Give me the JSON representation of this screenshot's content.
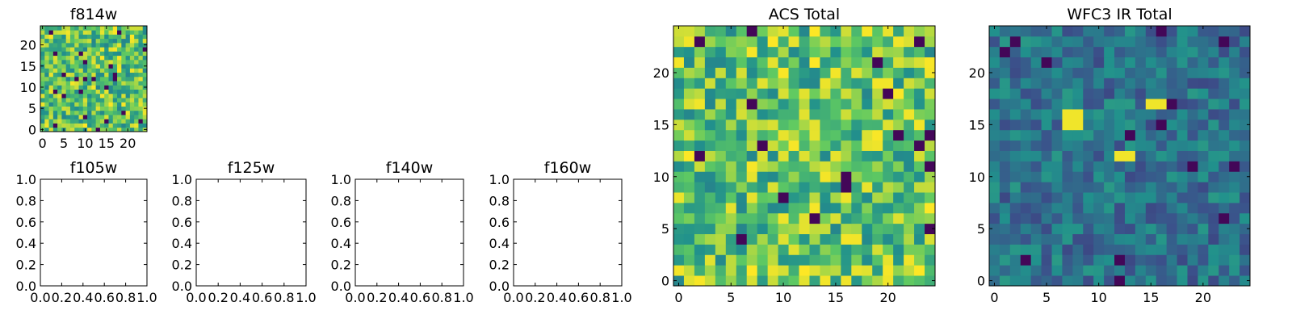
{
  "chart_data": [
    {
      "type": "heatmap",
      "title": "f814w",
      "xlim": [
        -0.5,
        24.5
      ],
      "ylim": [
        -0.5,
        24.5
      ],
      "xticks": [
        0,
        5,
        10,
        15,
        20
      ],
      "yticks": [
        0,
        5,
        10,
        15,
        20
      ],
      "grid_size": 25,
      "colormap": [
        "#440154",
        "#3b528b",
        "#21918c",
        "#5ec962",
        "#fde725"
      ],
      "values_note": "pixel noise",
      "seed": 814
    },
    {
      "type": "scatter",
      "title": "f105w",
      "xlim": [
        0,
        1
      ],
      "ylim": [
        0,
        1
      ],
      "xticks": [
        "0.0",
        "0.2",
        "0.4",
        "0.6",
        "0.8",
        "1.0"
      ],
      "yticks": [
        "0.0",
        "0.2",
        "0.4",
        "0.6",
        "0.8",
        "1.0"
      ]
    },
    {
      "type": "scatter",
      "title": "f125w",
      "xlim": [
        0,
        1
      ],
      "ylim": [
        0,
        1
      ],
      "xticks": [
        "0.0",
        "0.2",
        "0.4",
        "0.6",
        "0.8",
        "1.0"
      ],
      "yticks": [
        "0.0",
        "0.2",
        "0.4",
        "0.6",
        "0.8",
        "1.0"
      ]
    },
    {
      "type": "scatter",
      "title": "f140w",
      "xlim": [
        0,
        1
      ],
      "ylim": [
        0,
        1
      ],
      "xticks": [
        "0.0",
        "0.2",
        "0.4",
        "0.6",
        "0.8",
        "1.0"
      ],
      "yticks": [
        "0.0",
        "0.2",
        "0.4",
        "0.6",
        "0.8",
        "1.0"
      ]
    },
    {
      "type": "scatter",
      "title": "f160w",
      "xlim": [
        0,
        1
      ],
      "ylim": [
        0,
        1
      ],
      "xticks": [
        "0.0",
        "0.2",
        "0.4",
        "0.6",
        "0.8",
        "1.0"
      ],
      "yticks": [
        "0.0",
        "0.2",
        "0.4",
        "0.6",
        "0.8",
        "1.0"
      ]
    },
    {
      "type": "heatmap",
      "title": "ACS Total",
      "xlim": [
        -0.5,
        24.5
      ],
      "ylim": [
        -0.5,
        24.5
      ],
      "xticks": [
        0,
        5,
        10,
        15,
        20
      ],
      "yticks": [
        0,
        5,
        10,
        15,
        20
      ],
      "grid_size": 25,
      "colormap": [
        "#440154",
        "#3b528b",
        "#21918c",
        "#5ec962",
        "#fde725"
      ],
      "seed": 2001
    },
    {
      "type": "heatmap",
      "title": "WFC3 IR Total",
      "xlim": [
        -0.5,
        24.5
      ],
      "ylim": [
        -0.5,
        24.5
      ],
      "xticks": [
        0,
        5,
        10,
        15,
        20
      ],
      "yticks": [
        0,
        5,
        10,
        15,
        20
      ],
      "grid_size": 25,
      "colormap": [
        "#440154",
        "#3b528b",
        "#21918c",
        "#5ec962",
        "#fde725"
      ],
      "seed": 3003,
      "bright_blobs": [
        [
          7,
          15.5
        ],
        [
          8,
          15.5
        ],
        [
          12.5,
          12
        ],
        [
          15.5,
          17
        ]
      ]
    }
  ]
}
